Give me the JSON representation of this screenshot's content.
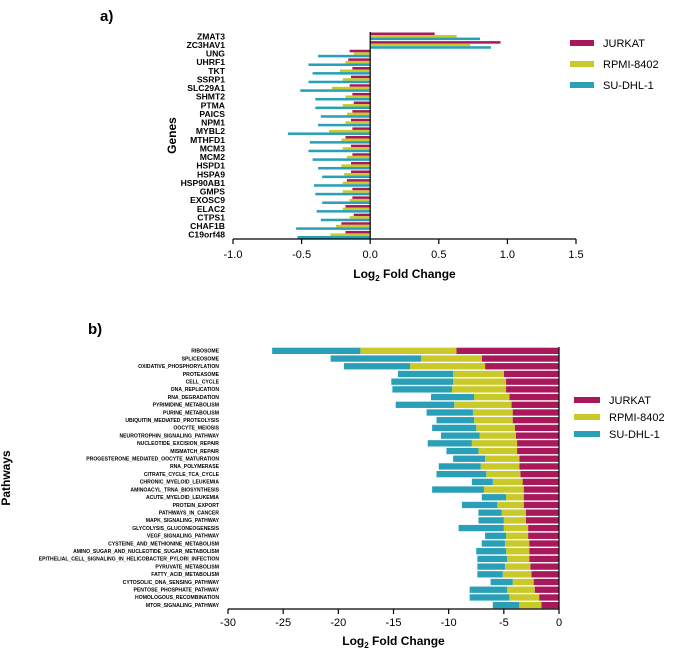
{
  "chart_data": [
    {
      "panel_label": "a)",
      "type": "bar",
      "orientation": "horizontal",
      "layout": "grouped",
      "ylabel": "Genes",
      "xlabel_main": "Log",
      "xlabel_sub": "2",
      "xlabel_rest": " Fold Change",
      "xlim": [
        -1.0,
        1.5
      ],
      "xticks": [
        -1.0,
        -0.5,
        0.0,
        0.5,
        1.0,
        1.5
      ],
      "xtick_labels": [
        "-1.0",
        "-0.5",
        "0.0",
        "0.5",
        "1.0",
        "1.5"
      ],
      "legend_position": "right",
      "categories": [
        "ZMAT3",
        "ZC3HAV1",
        "UNG",
        "UHRF1",
        "TKT",
        "SSRP1",
        "SLC29A1",
        "SHMT2",
        "PTMA",
        "PAICS",
        "NPM1",
        "MYBL2",
        "MTHFD1",
        "MCM3",
        "MCM2",
        "HSPD1",
        "HSPA9",
        "HSP90AB1",
        "GMPS",
        "EXOSC9",
        "ELAC2",
        "CTPS1",
        "CHAF1B",
        "C19orf48"
      ],
      "series": [
        {
          "name": "JURKAT",
          "color": "#a8185a",
          "values": [
            0.47,
            0.95,
            -0.15,
            -0.16,
            -0.13,
            -0.14,
            -0.15,
            -0.13,
            -0.12,
            -0.13,
            -0.14,
            -0.13,
            -0.18,
            -0.14,
            -0.13,
            -0.14,
            -0.14,
            -0.17,
            -0.13,
            -0.13,
            -0.18,
            -0.12,
            -0.21,
            -0.18
          ]
        },
        {
          "name": "RPMI-8402",
          "color": "#c9c92a",
          "values": [
            0.63,
            0.73,
            -0.12,
            -0.18,
            -0.22,
            -0.2,
            -0.28,
            -0.18,
            -0.2,
            -0.17,
            -0.18,
            -0.3,
            -0.21,
            -0.2,
            -0.17,
            -0.21,
            -0.19,
            -0.2,
            -0.2,
            -0.15,
            -0.2,
            -0.15,
            -0.25,
            -0.29
          ]
        },
        {
          "name": "SU-DHL-1",
          "color": "#2aa0b8",
          "values": [
            0.8,
            0.88,
            -0.38,
            -0.45,
            -0.42,
            -0.45,
            -0.51,
            -0.4,
            -0.4,
            -0.36,
            -0.38,
            -0.6,
            -0.44,
            -0.45,
            -0.42,
            -0.38,
            -0.35,
            -0.41,
            -0.4,
            -0.35,
            -0.39,
            -0.36,
            -0.54,
            -0.53
          ]
        }
      ]
    },
    {
      "panel_label": "b)",
      "type": "bar",
      "orientation": "horizontal",
      "layout": "stacked",
      "ylabel": "Pathways",
      "xlabel_main": "Log",
      "xlabel_sub": "2",
      "xlabel_rest": " Fold Change",
      "xlim": [
        -30,
        0
      ],
      "xticks": [
        -30,
        -25,
        -20,
        -15,
        -10,
        -5,
        0
      ],
      "xtick_labels": [
        "-30",
        "-25",
        "-20",
        "-15",
        "-10",
        "-5",
        "0"
      ],
      "legend_position": "right",
      "categories": [
        "RIBOSOME",
        "SPLICEOSOME",
        "OXIDATIVE_PHOSPHORYLATION",
        "PROTEASOME",
        "CELL_CYCLE",
        "DNA_REPLICATION",
        "RNA_DEGRADATION",
        "PYRIMIDINE_METABOLISM",
        "PURINE_METABOLISM",
        "UBIQUITIN_MEDIATED_PROTEOLYSIS",
        "OOCYTE_MEIOSIS",
        "NEUROTROPHIN_SIGNALING_PATHWAY",
        "NUCLEOTIDE_EXCISION_REPAIR",
        "MISMATCH_REPAIR",
        "PROGESTERONE_MEDIATED_OOCYTE_MATURATION",
        "RNA_POLYMERASE",
        "CITRATE_CYCLE_TCA_CYCLE",
        "CHRONIC_MYELOID_LEUKEMIA",
        "AMINOACYL_TRNA_BIOSYNTHESIS",
        "ACUTE_MYELOID_LEUKEMIA",
        "PROTEIN_EXPORT",
        "PATHWAYS_IN_CANCER",
        "MAPK_SIGNALING_PATHWAY",
        "GLYCOLYSIS_GLUCONEOGENESIS",
        "VEGF_SIGNALING_PATHWAY",
        "CYSTEINE_AND_METHIONINE_METABOLISM",
        "AMINO_SUGAR_AND_NUCLEOTIDE_SUGAR_METABOLISM",
        "EPITHELIAL_CELL_SIGNALING_IN_HELICOBACTER_PYLORI_INFECTION",
        "PYRUVATE_METABOLISM",
        "FATTY_ACID_METABOLISM",
        "CYTOSOLIC_DNA_SENSING_PATHWAY",
        "PENTOSE_PHOSPHATE_PATHWAY",
        "HOMOLOGOUS_RECOMBINATION",
        "MTOR_SIGNALING_PATHWAY"
      ],
      "series": [
        {
          "name": "JURKAT",
          "color": "#a8185a",
          "values": [
            -9.3,
            -7.0,
            -6.7,
            -5.0,
            -4.8,
            -4.8,
            -4.5,
            -4.3,
            -4.2,
            -4.2,
            -4.0,
            -3.9,
            -3.8,
            -3.8,
            -3.6,
            -3.6,
            -3.5,
            -3.3,
            -3.2,
            -3.2,
            -3.2,
            -3.0,
            -3.0,
            -2.8,
            -2.8,
            -2.7,
            -2.7,
            -2.7,
            -2.6,
            -2.5,
            -2.3,
            -2.2,
            -1.8,
            -1.6
          ]
        },
        {
          "name": "RPMI-8402",
          "color": "#c9c92a",
          "values": [
            -8.7,
            -5.5,
            -6.8,
            -4.6,
            -4.8,
            -4.9,
            -3.2,
            -5.2,
            -3.6,
            -3.5,
            -3.5,
            -3.3,
            -4.1,
            -3.5,
            -3.1,
            -3.5,
            -3.1,
            -2.7,
            -3.6,
            -1.6,
            -2.4,
            -2.2,
            -2.0,
            -2.2,
            -2.0,
            -2.2,
            -2.1,
            -2.0,
            -2.3,
            -2.6,
            -1.9,
            -2.5,
            -2.7,
            -2.0
          ]
        },
        {
          "name": "SU-DHL-1",
          "color": "#2aa0b8",
          "values": [
            -8.0,
            -8.2,
            -6.0,
            -5.0,
            -5.6,
            -5.4,
            -3.9,
            -5.3,
            -4.2,
            -3.4,
            -4.0,
            -3.5,
            -4.0,
            -2.9,
            -2.9,
            -3.8,
            -4.5,
            -1.9,
            -4.7,
            -2.2,
            -3.2,
            -2.1,
            -2.3,
            -4.1,
            -1.9,
            -2.1,
            -2.7,
            -2.7,
            -2.5,
            -2.3,
            -2.0,
            -3.4,
            -3.6,
            -2.4
          ]
        }
      ]
    }
  ]
}
